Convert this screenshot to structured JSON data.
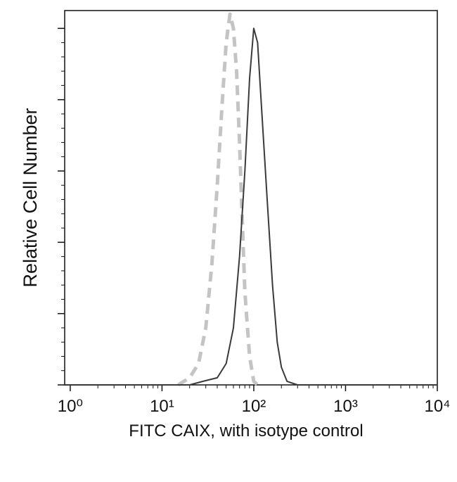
{
  "chart_data": {
    "type": "line",
    "xlabel": "FITC CAIX, with isotype control",
    "ylabel": "Relative Cell Number",
    "xscale": "log",
    "xlim": [
      0.87,
      10000
    ],
    "xticks": [
      {
        "value": 1,
        "label": "10⁰"
      },
      {
        "value": 10,
        "label": "10¹"
      },
      {
        "value": 100,
        "label": "10²"
      },
      {
        "value": 1000,
        "label": "10³"
      },
      {
        "value": 10000,
        "label": "10⁴"
      }
    ],
    "ylim": [
      0,
      5.25
    ],
    "yticks": [
      0,
      1,
      2,
      3,
      4,
      5
    ],
    "series": [
      {
        "color": "#c4c4c4",
        "dash": true,
        "x": [
          15,
          20,
          25,
          30,
          35,
          40,
          45,
          50,
          55,
          60,
          65,
          70,
          75,
          80,
          90,
          100,
          110
        ],
        "values": [
          0,
          0.1,
          0.3,
          0.8,
          1.7,
          2.8,
          3.9,
          4.8,
          5.2,
          5.0,
          4.4,
          3.4,
          2.3,
          1.3,
          0.4,
          0.05,
          0
        ]
      },
      {
        "color": "#3a3a3a",
        "dash": false,
        "x": [
          0.87,
          20,
          28,
          40,
          50,
          60,
          70,
          80,
          90,
          100,
          110,
          120,
          140,
          160,
          180,
          200,
          230,
          300,
          10000
        ],
        "values": [
          0,
          0,
          0.05,
          0.1,
          0.3,
          0.8,
          1.8,
          3.0,
          4.3,
          5.0,
          4.8,
          4.0,
          2.6,
          1.4,
          0.6,
          0.25,
          0.05,
          0,
          0
        ]
      }
    ]
  }
}
